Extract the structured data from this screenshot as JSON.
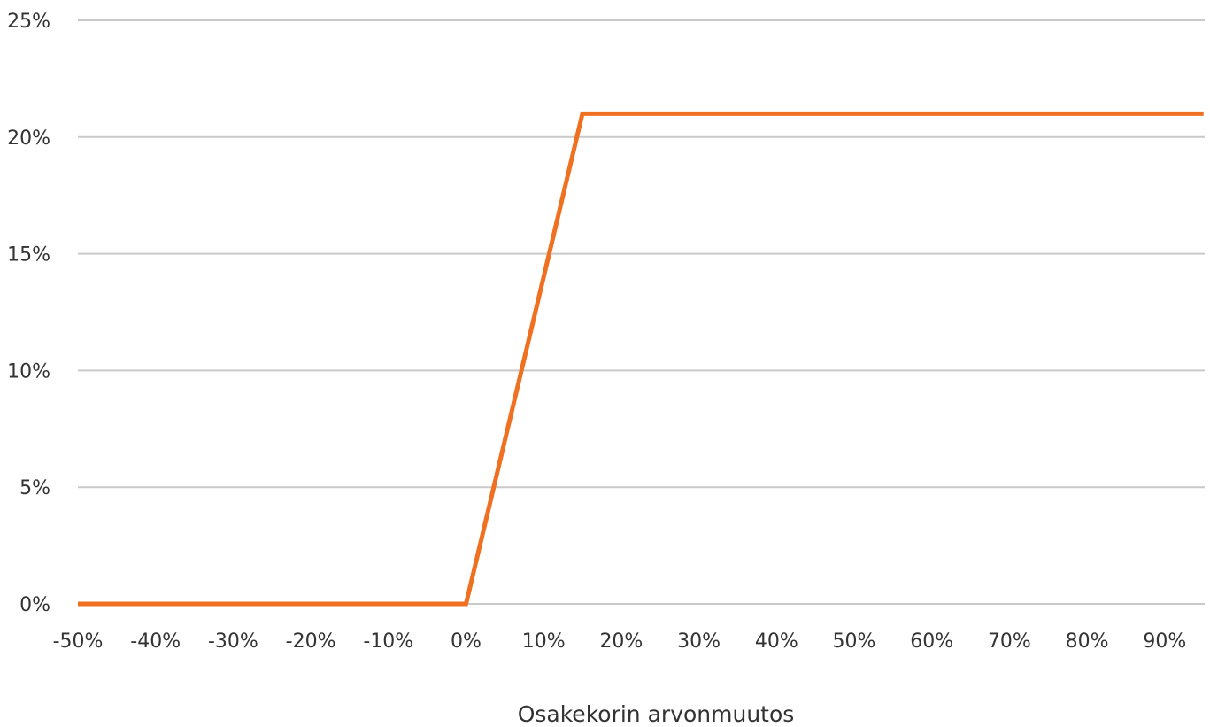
{
  "chart_data": {
    "type": "line",
    "title": "",
    "xlabel": "Osakekorin arvonmuutos",
    "ylabel": "",
    "x_ticks": [
      "-50%",
      "-40%",
      "-30%",
      "-20%",
      "-10%",
      "0%",
      "10%",
      "20%",
      "30%",
      "40%",
      "50%",
      "60%",
      "70%",
      "80%",
      "90%"
    ],
    "y_ticks": [
      "0%",
      "5%",
      "10%",
      "15%",
      "20%",
      "25%"
    ],
    "xlim": [
      -50,
      95
    ],
    "ylim": [
      0,
      25
    ],
    "grid": true,
    "legend": "none",
    "series": [
      {
        "color": "#f07022",
        "points": [
          {
            "x": -50,
            "y": 0
          },
          {
            "x": 0,
            "y": 0
          },
          {
            "x": 15,
            "y": 21
          },
          {
            "x": 95,
            "y": 21
          }
        ]
      }
    ]
  }
}
